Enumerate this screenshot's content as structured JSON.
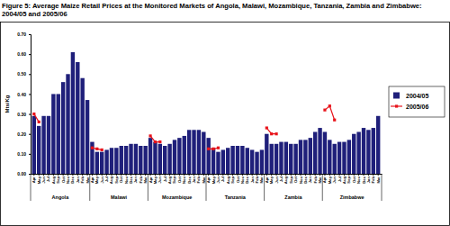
{
  "chart_data": {
    "type": "bar",
    "title": "Figure 5: Average Maize Retail Prices at the Monitored Markets of Angola, Malawi, Mozambique, Tanzania, Zambia and Zimbabwe: 2004/05 and 2005/06",
    "y_label": "Mts/Kg",
    "categories": [
      "Apr",
      "May",
      "Jun",
      "Jul",
      "Aug",
      "Sep",
      "Oct",
      "Nov",
      "Dec",
      "Jan",
      "Feb",
      "Mar",
      "Apr",
      "May",
      "Jun",
      "Jul",
      "Aug",
      "Sep",
      "Oct",
      "Nov",
      "Dec",
      "Jan",
      "Feb",
      "Mar",
      "Apr",
      "May",
      "Jun",
      "Jul",
      "Aug",
      "Sep",
      "Oct",
      "Nov",
      "Dec",
      "Jan",
      "Feb",
      "Mar",
      "Apr",
      "May",
      "Jun",
      "Jul",
      "Aug",
      "Sep",
      "Oct",
      "Nov",
      "Dec",
      "Jan",
      "Feb",
      "Mar",
      "Apr",
      "May",
      "Jun",
      "Jul",
      "Aug",
      "Sep",
      "Oct",
      "Nov",
      "Dec",
      "Jan",
      "Feb",
      "Mar",
      "Apr",
      "May",
      "Jun",
      "Jul",
      "Aug",
      "Sep",
      "Oct",
      "Nov",
      "Dec",
      "Jan",
      "Feb",
      "Mar"
    ],
    "groups": [
      "Angola",
      "Angola",
      "Angola",
      "Angola",
      "Angola",
      "Angola",
      "Angola",
      "Angola",
      "Angola",
      "Angola",
      "Angola",
      "Angola",
      "Malawi",
      "Malawi",
      "Malawi",
      "Malawi",
      "Malawi",
      "Malawi",
      "Malawi",
      "Malawi",
      "Malawi",
      "Malawi",
      "Malawi",
      "Malawi",
      "Mozambique",
      "Mozambique",
      "Mozambique",
      "Mozambique",
      "Mozambique",
      "Mozambique",
      "Mozambique",
      "Mozambique",
      "Mozambique",
      "Mozambique",
      "Mozambique",
      "Mozambique",
      "Tanzania",
      "Tanzania",
      "Tanzania",
      "Tanzania",
      "Tanzania",
      "Tanzania",
      "Tanzania",
      "Tanzania",
      "Tanzania",
      "Tanzania",
      "Tanzania",
      "Tanzania",
      "Zambia",
      "Zambia",
      "Zambia",
      "Zambia",
      "Zambia",
      "Zambia",
      "Zambia",
      "Zambia",
      "Zambia",
      "Zambia",
      "Zambia",
      "Zambia",
      "Zimbabwe",
      "Zimbabwe",
      "Zimbabwe",
      "Zimbabwe",
      "Zimbabwe",
      "Zimbabwe",
      "Zimbabwe",
      "Zimbabwe",
      "Zimbabwe",
      "Zimbabwe",
      "Zimbabwe",
      "Zimbabwe"
    ],
    "series": [
      {
        "name": "2004/05",
        "type": "bar",
        "color": "#1f1f7a",
        "values": [
          0.29,
          0.24,
          0.29,
          0.29,
          0.4,
          0.4,
          0.46,
          0.5,
          0.61,
          0.56,
          0.48,
          0.37,
          0.16,
          0.11,
          0.11,
          0.12,
          0.13,
          0.13,
          0.14,
          0.14,
          0.15,
          0.15,
          0.14,
          0.14,
          0.18,
          0.16,
          0.15,
          0.14,
          0.15,
          0.17,
          0.18,
          0.19,
          0.22,
          0.22,
          0.22,
          0.21,
          0.18,
          0.13,
          0.11,
          0.12,
          0.13,
          0.14,
          0.14,
          0.14,
          0.13,
          0.12,
          0.11,
          0.12,
          0.2,
          0.15,
          0.15,
          0.16,
          0.16,
          0.15,
          0.15,
          0.17,
          0.17,
          0.18,
          0.21,
          0.23,
          0.21,
          0.17,
          0.15,
          0.16,
          0.16,
          0.17,
          0.2,
          0.21,
          0.23,
          0.22,
          0.23,
          0.29
        ]
      },
      {
        "name": "2005/06",
        "type": "line",
        "color": "#e8141b",
        "marker": "square",
        "line_style": "solid",
        "values": [
          0.3,
          0.26,
          null,
          null,
          null,
          null,
          null,
          null,
          null,
          null,
          null,
          null,
          0.13,
          0.125,
          0.12,
          null,
          null,
          null,
          null,
          null,
          null,
          null,
          null,
          null,
          0.19,
          0.16,
          0.16,
          null,
          null,
          null,
          null,
          null,
          null,
          null,
          null,
          null,
          0.125,
          0.125,
          0.13,
          null,
          null,
          null,
          null,
          null,
          null,
          null,
          null,
          null,
          0.23,
          0.2,
          0.2,
          null,
          null,
          null,
          null,
          null,
          null,
          null,
          null,
          null,
          0.32,
          0.34,
          0.27,
          null,
          null,
          null,
          null,
          null,
          null,
          null,
          null,
          null
        ]
      }
    ],
    "ylim": [
      0,
      0.7
    ],
    "yticks": [
      {
        "value": 0,
        "label": "0.00"
      },
      {
        "value": 0.1,
        "label": "0.10"
      },
      {
        "value": 0.2,
        "label": "0.20"
      },
      {
        "value": 0.3,
        "label": "0.30"
      },
      {
        "value": 0.4,
        "label": "0.40"
      },
      {
        "value": 0.5,
        "label": "0.50"
      },
      {
        "value": 0.6,
        "label": "0.60"
      },
      {
        "value": 0.7,
        "label": "0.70"
      }
    ],
    "grid": false,
    "legend": "right"
  }
}
